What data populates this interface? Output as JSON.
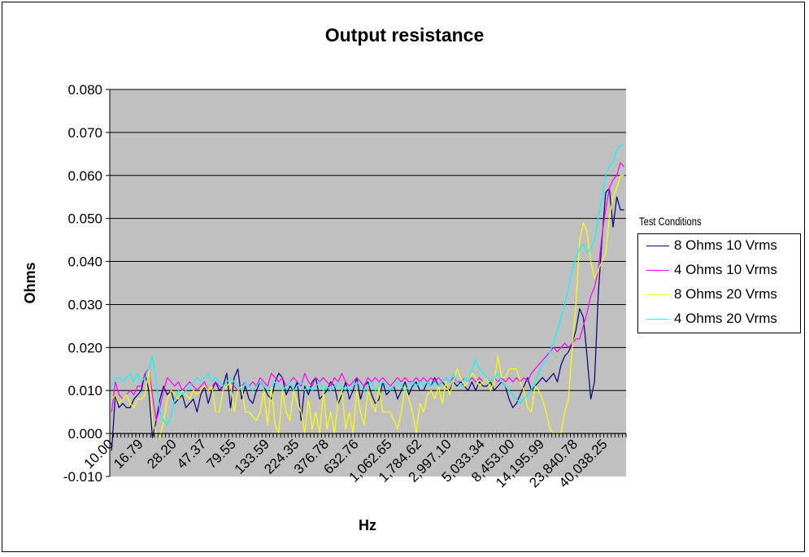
{
  "chart_data": {
    "type": "line",
    "title": "Output resistance",
    "xlabel": "Hz",
    "ylabel": "Ohms",
    "ylim": [
      -0.01,
      0.08
    ],
    "yticks": [
      "0.080",
      "0.070",
      "0.060",
      "0.050",
      "0.040",
      "0.030",
      "0.020",
      "0.010",
      "0.000",
      "-0.010"
    ],
    "x_tick_labels": [
      "10.00",
      "16.79",
      "28.20",
      "47.37",
      "79.55",
      "133.59",
      "224.35",
      "376.78",
      "632.76",
      "1,062.65",
      "1,784.62",
      "2,997.10",
      "5,033.34",
      "8,453.00",
      "14,195.99",
      "23,840.78",
      "40,038.25"
    ],
    "grid": true,
    "background": "#c0c0c0",
    "legend": {
      "title": "Test Conditions",
      "placement": "right"
    },
    "num_points": 139,
    "series": [
      {
        "name": "8 Ohms 10 Vrms",
        "color": "#000080",
        "values": [
          -0.004,
          0.009,
          0.006,
          0.007,
          0.006,
          0.006,
          0.008,
          0.009,
          0.01,
          0.014,
          0.01,
          -0.001,
          0.003,
          0.008,
          0.011,
          0.009,
          0.01,
          0.007,
          0.008,
          0.009,
          0.006,
          0.007,
          0.008,
          0.005,
          0.009,
          0.011,
          0.007,
          0.01,
          0.012,
          0.01,
          0.011,
          0.014,
          0.006,
          0.013,
          0.015,
          0.008,
          0.011,
          0.008,
          0.007,
          0.01,
          0.012,
          0.011,
          0.009,
          0.008,
          0.012,
          0.014,
          0.013,
          0.009,
          0.011,
          0.01,
          0.012,
          0.003,
          0.011,
          0.009,
          0.012,
          0.013,
          0.008,
          0.009,
          0.01,
          0.012,
          0.011,
          0.007,
          0.009,
          0.012,
          0.008,
          0.01,
          0.013,
          0.008,
          0.011,
          0.012,
          0.009,
          0.007,
          0.008,
          0.012,
          0.009,
          0.01,
          0.011,
          0.008,
          0.01,
          0.012,
          0.009,
          0.011,
          0.012,
          0.01,
          0.01,
          0.012,
          0.011,
          0.013,
          0.011,
          0.012,
          0.011,
          0.01,
          0.012,
          0.011,
          0.012,
          0.011,
          0.01,
          0.012,
          0.01,
          0.012,
          0.011,
          0.011,
          0.012,
          0.01,
          0.011,
          0.012,
          0.011,
          0.008,
          0.006,
          0.007,
          0.009,
          0.011,
          0.013,
          0.01,
          0.011,
          0.012,
          0.013,
          0.012,
          0.013,
          0.014,
          0.012,
          0.016,
          0.018,
          0.019,
          0.021,
          0.024,
          0.029,
          0.027,
          0.018,
          0.008,
          0.012,
          0.032,
          0.045,
          0.056,
          0.057,
          0.048,
          0.055,
          0.052,
          0.052
        ]
      },
      {
        "name": "4 Ohms 10 Vrms",
        "color": "#ff00ff",
        "values": [
          0.005,
          0.012,
          0.009,
          0.008,
          0.009,
          0.01,
          0.009,
          0.011,
          0.011,
          0.014,
          0.015,
          0.009,
          0.003,
          0.006,
          0.01,
          0.013,
          0.012,
          0.011,
          0.012,
          0.01,
          0.011,
          0.012,
          0.011,
          0.01,
          0.011,
          0.012,
          0.01,
          0.011,
          0.012,
          0.011,
          0.01,
          0.011,
          0.012,
          0.011,
          0.01,
          0.011,
          0.012,
          0.011,
          0.012,
          0.011,
          0.013,
          0.012,
          0.011,
          0.014,
          0.013,
          0.012,
          0.013,
          0.011,
          0.012,
          0.013,
          0.012,
          0.011,
          0.014,
          0.012,
          0.011,
          0.013,
          0.012,
          0.013,
          0.012,
          0.011,
          0.013,
          0.012,
          0.014,
          0.012,
          0.011,
          0.012,
          0.013,
          0.012,
          0.011,
          0.013,
          0.012,
          0.013,
          0.012,
          0.013,
          0.012,
          0.011,
          0.012,
          0.013,
          0.012,
          0.013,
          0.012,
          0.012,
          0.013,
          0.012,
          0.013,
          0.012,
          0.013,
          0.012,
          0.013,
          0.012,
          0.013,
          0.012,
          0.013,
          0.012,
          0.012,
          0.013,
          0.012,
          0.013,
          0.012,
          0.013,
          0.012,
          0.013,
          0.012,
          0.013,
          0.012,
          0.013,
          0.012,
          0.013,
          0.012,
          0.013,
          0.012,
          0.013,
          0.012,
          0.014,
          0.015,
          0.016,
          0.017,
          0.018,
          0.019,
          0.02,
          0.019,
          0.02,
          0.021,
          0.02,
          0.021,
          0.022,
          0.022,
          0.025,
          0.028,
          0.032,
          0.034,
          0.038,
          0.046,
          0.052,
          0.057,
          0.059,
          0.06,
          0.063,
          0.062
        ]
      },
      {
        "name": "8 Ohms 20 Vrms",
        "color": "#ffff00",
        "values": [
          0.008,
          0.009,
          0.007,
          0.008,
          0.009,
          0.007,
          0.006,
          0.008,
          0.008,
          0.009,
          0.015,
          0.003,
          0.0,
          -0.001,
          0.003,
          0.008,
          0.01,
          0.009,
          0.008,
          0.01,
          0.009,
          0.008,
          0.01,
          0.009,
          0.01,
          0.011,
          0.01,
          0.011,
          0.005,
          0.005,
          0.01,
          0.011,
          0.012,
          0.005,
          0.01,
          0.011,
          0.005,
          0.005,
          0.004,
          0.003,
          0.005,
          0.01,
          0.002,
          0.011,
          0.002,
          0.0,
          0.01,
          0.005,
          0.003,
          0.01,
          0.007,
          0.005,
          0.0,
          0.008,
          0.001,
          0.005,
          0.0,
          0.01,
          0.001,
          0.005,
          0.0,
          0.008,
          0.01,
          0.001,
          0.005,
          0.0,
          0.01,
          0.005,
          0.002,
          0.01,
          0.007,
          0.005,
          0.011,
          0.005,
          0.005,
          0.005,
          0.003,
          0.001,
          0.005,
          0.011,
          0.008,
          0.005,
          0.0,
          0.007,
          0.005,
          0.009,
          0.01,
          0.008,
          0.011,
          0.007,
          0.012,
          0.009,
          0.012,
          0.015,
          0.013,
          0.011,
          0.012,
          0.014,
          0.013,
          0.011,
          0.012,
          0.013,
          0.01,
          0.012,
          0.018,
          0.013,
          0.013,
          0.015,
          0.015,
          0.015,
          0.012,
          0.01,
          0.006,
          0.005,
          0.011,
          0.01,
          0.008,
          0.005,
          0.001,
          0.0,
          0.0,
          0.0,
          0.005,
          0.008,
          0.02,
          0.03,
          0.045,
          0.049,
          0.047,
          0.04,
          0.036,
          0.038,
          0.04,
          0.042,
          0.05,
          0.055,
          0.057,
          0.06,
          0.06
        ]
      },
      {
        "name": "4 Ohms 20 Vrms",
        "color": "#00ffff",
        "values": [
          0.011,
          0.013,
          0.013,
          0.012,
          0.013,
          0.014,
          0.012,
          0.014,
          0.012,
          0.013,
          0.015,
          0.018,
          0.012,
          0.005,
          0.003,
          0.002,
          0.004,
          0.008,
          0.01,
          0.009,
          0.01,
          0.011,
          0.012,
          0.013,
          0.012,
          0.013,
          0.014,
          0.012,
          0.013,
          0.012,
          0.011,
          0.012,
          0.013,
          0.012,
          0.011,
          0.01,
          0.012,
          0.011,
          0.01,
          0.011,
          0.012,
          0.011,
          0.01,
          0.011,
          0.012,
          0.011,
          0.01,
          0.011,
          0.012,
          0.01,
          0.011,
          0.012,
          0.01,
          0.011,
          0.01,
          0.011,
          0.012,
          0.01,
          0.011,
          0.01,
          0.011,
          0.012,
          0.01,
          0.011,
          0.01,
          0.011,
          0.012,
          0.011,
          0.01,
          0.011,
          0.012,
          0.01,
          0.011,
          0.012,
          0.011,
          0.01,
          0.011,
          0.012,
          0.011,
          0.01,
          0.011,
          0.012,
          0.011,
          0.012,
          0.011,
          0.012,
          0.011,
          0.012,
          0.011,
          0.012,
          0.013,
          0.012,
          0.014,
          0.012,
          0.011,
          0.013,
          0.012,
          0.015,
          0.017,
          0.015,
          0.014,
          0.013,
          0.012,
          0.013,
          0.014,
          0.012,
          0.011,
          0.01,
          0.009,
          0.008,
          0.007,
          0.008,
          0.009,
          0.01,
          0.012,
          0.014,
          0.016,
          0.017,
          0.019,
          0.021,
          0.024,
          0.027,
          0.03,
          0.034,
          0.038,
          0.041,
          0.043,
          0.044,
          0.042,
          0.043,
          0.045,
          0.05,
          0.055,
          0.06,
          0.062,
          0.063,
          0.066,
          0.067,
          0.067
        ]
      }
    ]
  }
}
